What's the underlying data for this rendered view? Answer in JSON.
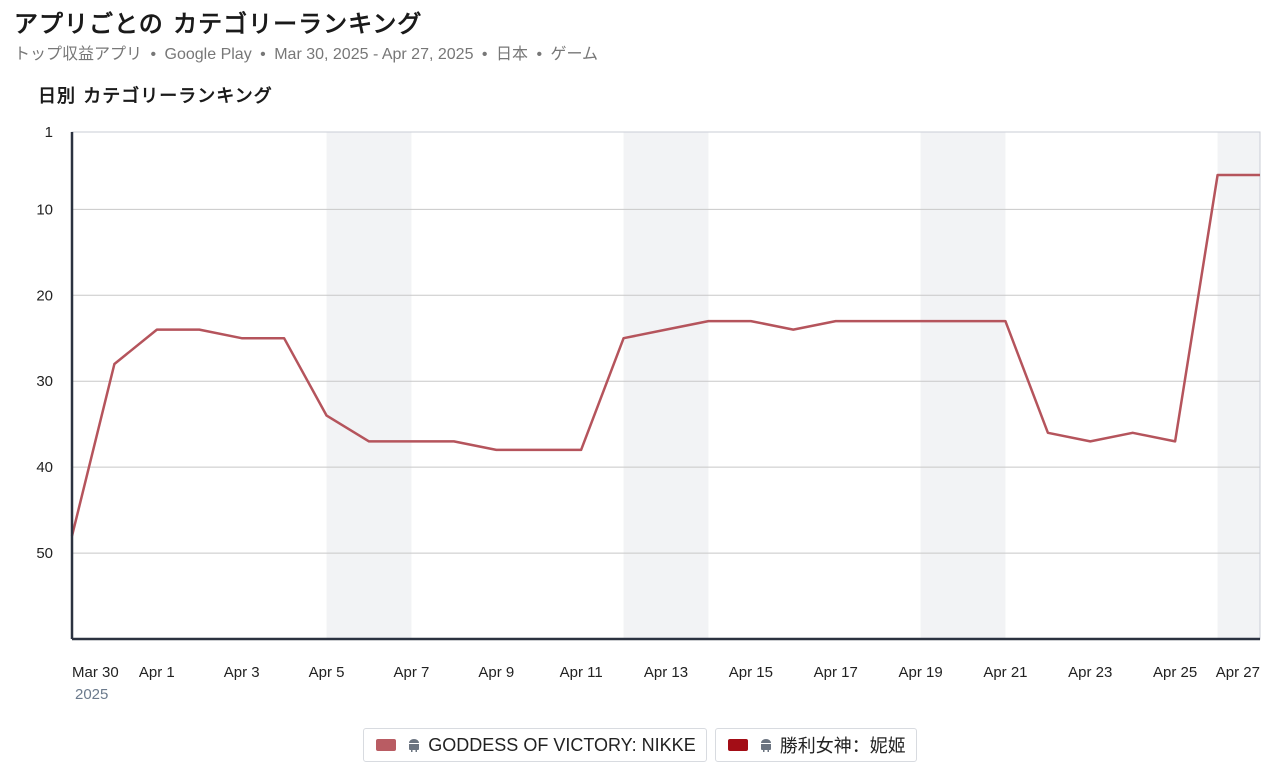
{
  "header": {
    "title": "アプリごとの カテゴリーランキング",
    "subtitle_parts": [
      "トップ収益アプリ",
      "Google Play",
      "Mar 30, 2025 - Apr 27, 2025",
      "日本",
      "ゲーム"
    ],
    "separator": "•"
  },
  "colors": {
    "series_line": "#b5545c",
    "legend_series_1": "#b95c63",
    "legend_series_2": "#a30d16",
    "weekend_band": "#f2f3f5",
    "gridline": "#c8c8c8",
    "axis": "#2b3240"
  },
  "legend": [
    {
      "label": "GODDESS OF VICTORY: NIKKE",
      "icon": "android-icon"
    },
    {
      "label": "勝利女神：妮姬",
      "icon": "android-icon"
    }
  ],
  "chart_data": {
    "type": "line",
    "title": "日別 カテゴリーランキング",
    "y_inverted": true,
    "ylim": [
      1,
      60
    ],
    "y_ticks": [
      1,
      10,
      20,
      30,
      40,
      50
    ],
    "x_dates": [
      "Mar 30",
      "Mar 31",
      "Apr 1",
      "Apr 2",
      "Apr 3",
      "Apr 4",
      "Apr 5",
      "Apr 6",
      "Apr 7",
      "Apr 8",
      "Apr 9",
      "Apr 10",
      "Apr 11",
      "Apr 12",
      "Apr 13",
      "Apr 14",
      "Apr 15",
      "Apr 16",
      "Apr 17",
      "Apr 18",
      "Apr 19",
      "Apr 20",
      "Apr 21",
      "Apr 22",
      "Apr 23",
      "Apr 24",
      "Apr 25",
      "Apr 26",
      "Apr 27"
    ],
    "x_tick_labels": [
      "Mar 30",
      "Apr 1",
      "Apr 3",
      "Apr 5",
      "Apr 7",
      "Apr 9",
      "Apr 11",
      "Apr 13",
      "Apr 15",
      "Apr 17",
      "Apr 19",
      "Apr 21",
      "Apr 23",
      "Apr 25",
      "Apr 27"
    ],
    "x_year_label": "2025",
    "weekend_bands": [
      [
        "Apr 5",
        "Apr 6"
      ],
      [
        "Apr 12",
        "Apr 13"
      ],
      [
        "Apr 19",
        "Apr 20"
      ],
      [
        "Apr 26",
        "Apr 27"
      ]
    ],
    "series": [
      {
        "name": "GODDESS OF VICTORY: NIKKE",
        "values": [
          48,
          28,
          24,
          24,
          25,
          25,
          34,
          37,
          37,
          37,
          38,
          38,
          38,
          25,
          24,
          23,
          23,
          24,
          23,
          23,
          23,
          23,
          23,
          36,
          37,
          36,
          37,
          6,
          6
        ]
      }
    ],
    "grid": true
  }
}
